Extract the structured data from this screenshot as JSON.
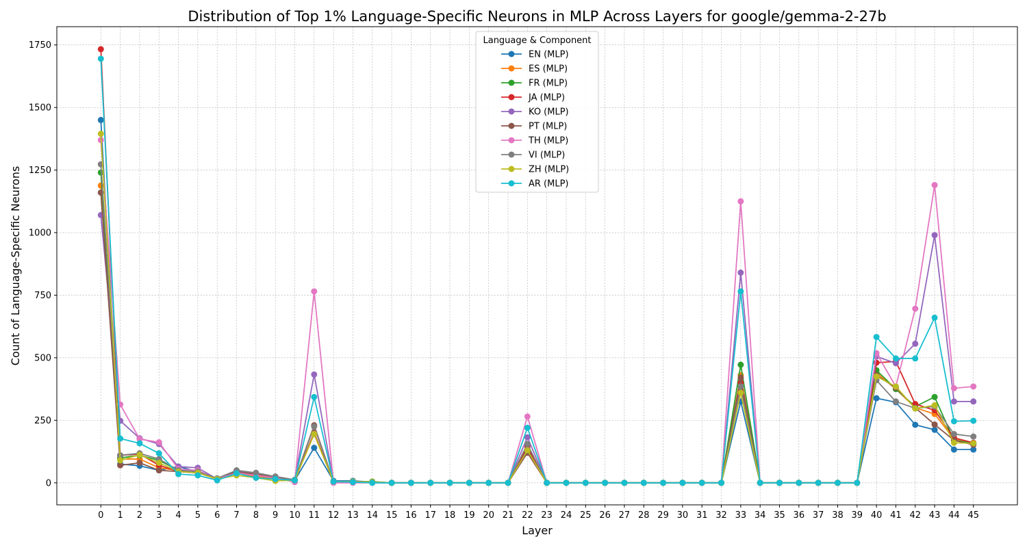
{
  "chart_data": {
    "type": "line",
    "title": "Distribution of Top 1% Language-Specific Neurons in MLP Across Layers for google/gemma-2-27b",
    "xlabel": "Layer",
    "ylabel": "Count of Language-Specific Neurons",
    "x": [
      0,
      1,
      2,
      3,
      4,
      5,
      6,
      7,
      8,
      9,
      10,
      11,
      12,
      13,
      14,
      15,
      16,
      17,
      18,
      19,
      20,
      21,
      22,
      23,
      24,
      25,
      26,
      27,
      28,
      29,
      30,
      31,
      32,
      33,
      34,
      35,
      36,
      37,
      38,
      39,
      40,
      41,
      42,
      43,
      44,
      45
    ],
    "x_ticks": [
      "0",
      "1",
      "2",
      "3",
      "4",
      "5",
      "6",
      "7",
      "8",
      "9",
      "10",
      "11",
      "12",
      "13",
      "14",
      "15",
      "16",
      "17",
      "18",
      "19",
      "20",
      "21",
      "22",
      "23",
      "24",
      "25",
      "26",
      "27",
      "28",
      "29",
      "30",
      "31",
      "32",
      "33",
      "34",
      "35",
      "36",
      "37",
      "38",
      "39",
      "40",
      "41",
      "42",
      "43",
      "44",
      "45"
    ],
    "y_ticks": [
      "0",
      "250",
      "500",
      "750",
      "1000",
      "1250",
      "1500",
      "1750"
    ],
    "ylim": [
      -88,
      1823
    ],
    "xlim": [
      -2.27,
      47.27
    ],
    "grid": true,
    "legend": {
      "title": "Language & Component",
      "position": "top-center"
    },
    "series": [
      {
        "name": "EN (MLP)",
        "color": "#1f77b4",
        "values": [
          1450,
          75,
          68,
          50,
          65,
          45,
          15,
          40,
          22,
          18,
          10,
          140,
          8,
          8,
          3,
          0,
          0,
          0,
          0,
          0,
          0,
          0,
          135,
          0,
          0,
          0,
          0,
          0,
          0,
          0,
          0,
          0,
          0,
          325,
          0,
          0,
          0,
          0,
          0,
          0,
          338,
          322,
          232,
          212,
          133,
          133
        ]
      },
      {
        "name": "ES (MLP)",
        "color": "#ff7f0e",
        "values": [
          1188,
          95,
          95,
          60,
          50,
          40,
          15,
          40,
          25,
          15,
          10,
          195,
          5,
          5,
          3,
          0,
          0,
          0,
          0,
          0,
          0,
          0,
          125,
          0,
          0,
          0,
          0,
          0,
          0,
          0,
          0,
          0,
          0,
          430,
          0,
          0,
          0,
          0,
          0,
          0,
          440,
          375,
          300,
          275,
          175,
          155
        ]
      },
      {
        "name": "FR (MLP)",
        "color": "#2ca02c",
        "values": [
          1240,
          100,
          110,
          90,
          50,
          45,
          15,
          45,
          30,
          20,
          12,
          200,
          5,
          5,
          5,
          0,
          0,
          0,
          0,
          0,
          0,
          0,
          150,
          0,
          0,
          0,
          0,
          0,
          0,
          0,
          0,
          0,
          0,
          472,
          0,
          0,
          0,
          0,
          0,
          0,
          450,
          375,
          305,
          343,
          170,
          158
        ]
      },
      {
        "name": "JA (MLP)",
        "color": "#d62728",
        "values": [
          1733,
          110,
          115,
          70,
          45,
          40,
          15,
          40,
          30,
          20,
          10,
          200,
          5,
          5,
          3,
          0,
          0,
          0,
          0,
          0,
          0,
          0,
          145,
          0,
          0,
          0,
          0,
          0,
          0,
          0,
          0,
          0,
          0,
          400,
          0,
          0,
          0,
          0,
          0,
          0,
          480,
          485,
          315,
          290,
          180,
          160
        ]
      },
      {
        "name": "KO (MLP)",
        "color": "#9467bd",
        "values": [
          1070,
          248,
          178,
          155,
          65,
          60,
          15,
          45,
          35,
          25,
          12,
          433,
          5,
          5,
          3,
          0,
          0,
          0,
          0,
          0,
          0,
          0,
          182,
          0,
          0,
          0,
          0,
          0,
          0,
          0,
          0,
          0,
          0,
          840,
          0,
          0,
          0,
          0,
          0,
          0,
          505,
          478,
          556,
          990,
          325,
          325
        ]
      },
      {
        "name": "PT (MLP)",
        "color": "#8c564b",
        "values": [
          1160,
          70,
          80,
          50,
          45,
          40,
          15,
          45,
          35,
          22,
          12,
          230,
          5,
          5,
          3,
          0,
          0,
          0,
          0,
          0,
          0,
          0,
          120,
          0,
          0,
          0,
          0,
          0,
          0,
          0,
          0,
          0,
          0,
          420,
          0,
          0,
          0,
          0,
          0,
          0,
          430,
          380,
          300,
          233,
          170,
          152
        ]
      },
      {
        "name": "TH (MLP)",
        "color": "#e377c2",
        "values": [
          1370,
          313,
          175,
          162,
          55,
          50,
          15,
          40,
          30,
          20,
          3,
          765,
          0,
          0,
          0,
          0,
          0,
          0,
          0,
          0,
          0,
          0,
          265,
          0,
          0,
          0,
          0,
          0,
          0,
          0,
          0,
          0,
          0,
          1125,
          0,
          0,
          0,
          0,
          0,
          0,
          518,
          385,
          696,
          1190,
          378,
          385
        ]
      },
      {
        "name": "VI (MLP)",
        "color": "#7f7f7f",
        "values": [
          1273,
          110,
          118,
          95,
          50,
          45,
          18,
          50,
          40,
          25,
          12,
          225,
          5,
          5,
          3,
          0,
          0,
          0,
          0,
          0,
          0,
          0,
          155,
          0,
          0,
          0,
          0,
          0,
          0,
          0,
          0,
          0,
          0,
          385,
          0,
          0,
          0,
          0,
          0,
          0,
          410,
          325,
          298,
          305,
          195,
          185
        ]
      },
      {
        "name": "ZH (MLP)",
        "color": "#bcbd22",
        "values": [
          1395,
          90,
          112,
          80,
          45,
          40,
          15,
          30,
          20,
          8,
          10,
          195,
          5,
          5,
          3,
          0,
          0,
          0,
          0,
          0,
          0,
          0,
          130,
          0,
          0,
          0,
          0,
          0,
          0,
          0,
          0,
          0,
          0,
          360,
          0,
          0,
          0,
          0,
          0,
          0,
          425,
          385,
          297,
          310,
          160,
          158
        ]
      },
      {
        "name": "AR (MLP)",
        "color": "#17becf",
        "values": [
          1695,
          177,
          158,
          118,
          35,
          30,
          10,
          38,
          20,
          15,
          10,
          343,
          5,
          3,
          0,
          0,
          0,
          0,
          0,
          0,
          0,
          0,
          220,
          0,
          0,
          0,
          0,
          0,
          0,
          0,
          0,
          0,
          0,
          765,
          0,
          0,
          0,
          0,
          0,
          0,
          583,
          497,
          497,
          660,
          246,
          248
        ]
      }
    ]
  }
}
